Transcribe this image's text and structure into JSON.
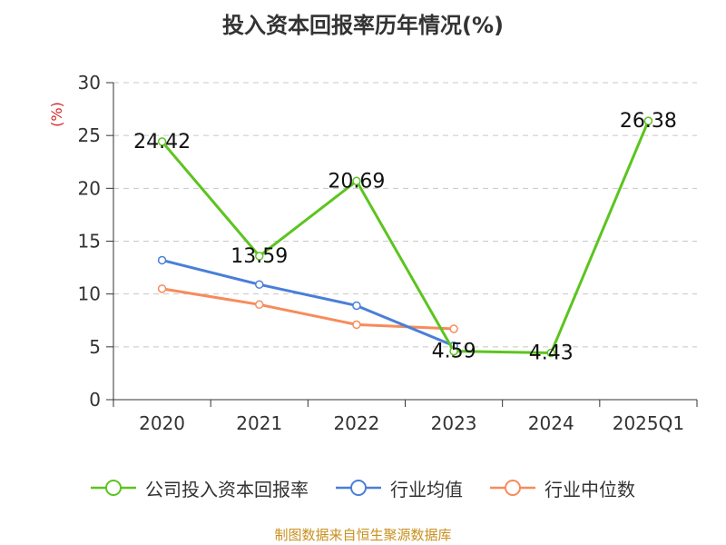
{
  "chart_data": {
    "type": "line",
    "title": "投入资本回报率历年情况(%)",
    "ylabel": "(%)",
    "xlabel": "",
    "ylim": [
      0,
      30
    ],
    "yticks": [
      0,
      5,
      10,
      15,
      20,
      25,
      30
    ],
    "grid": true,
    "legend_position": "bottom",
    "categories": [
      "2020",
      "2021",
      "2022",
      "2023",
      "2024",
      "2025Q1"
    ],
    "series": [
      {
        "name": "公司投入资本回报率",
        "color": "#5cc41f",
        "values": [
          24.42,
          13.59,
          20.69,
          4.59,
          4.43,
          26.38
        ],
        "data_labels": [
          "24.42",
          "13.59",
          "20.69",
          "4.59",
          "4.43",
          "26.38"
        ]
      },
      {
        "name": "行业均值",
        "color": "#4a7fd8",
        "values": [
          13.2,
          10.9,
          8.9,
          5.1,
          null,
          null
        ]
      },
      {
        "name": "行业中位数",
        "color": "#f78b5b",
        "values": [
          10.5,
          9.0,
          7.1,
          6.7,
          null,
          null
        ]
      }
    ]
  },
  "footer": {
    "source": "制图数据来自恒生聚源数据库"
  }
}
